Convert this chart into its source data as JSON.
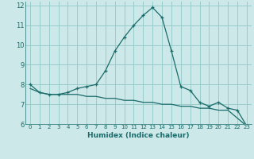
{
  "xlabel": "Humidex (Indice chaleur)",
  "background_color": "#cce8e8",
  "grid_color": "#99cccc",
  "line_color": "#1a6b6b",
  "xlim": [
    -0.5,
    23.5
  ],
  "ylim": [
    6,
    12.2
  ],
  "xticks": [
    0,
    1,
    2,
    3,
    4,
    5,
    6,
    7,
    8,
    9,
    10,
    11,
    12,
    13,
    14,
    15,
    16,
    17,
    18,
    19,
    20,
    21,
    22,
    23
  ],
  "yticks": [
    6,
    7,
    8,
    9,
    10,
    11,
    12
  ],
  "series1_x": [
    0,
    1,
    2,
    3,
    4,
    5,
    6,
    7,
    8,
    9,
    10,
    11,
    12,
    13,
    14,
    15,
    16,
    17,
    18,
    19,
    20,
    21,
    22,
    23
  ],
  "series1_y": [
    8.0,
    7.6,
    7.5,
    7.5,
    7.6,
    7.8,
    7.9,
    8.0,
    8.7,
    9.7,
    10.4,
    11.0,
    11.5,
    11.9,
    11.4,
    9.7,
    7.9,
    7.7,
    7.1,
    6.9,
    7.1,
    6.8,
    6.7,
    5.9
  ],
  "series2_x": [
    0,
    1,
    2,
    3,
    4,
    5,
    6,
    7,
    8,
    9,
    10,
    11,
    12,
    13,
    14,
    15,
    16,
    17,
    18,
    19,
    20,
    21,
    22,
    23
  ],
  "series2_y": [
    7.8,
    7.6,
    7.5,
    7.5,
    7.5,
    7.5,
    7.4,
    7.4,
    7.3,
    7.3,
    7.2,
    7.2,
    7.1,
    7.1,
    7.0,
    7.0,
    6.9,
    6.9,
    6.8,
    6.8,
    6.7,
    6.7,
    6.3,
    5.9
  ]
}
